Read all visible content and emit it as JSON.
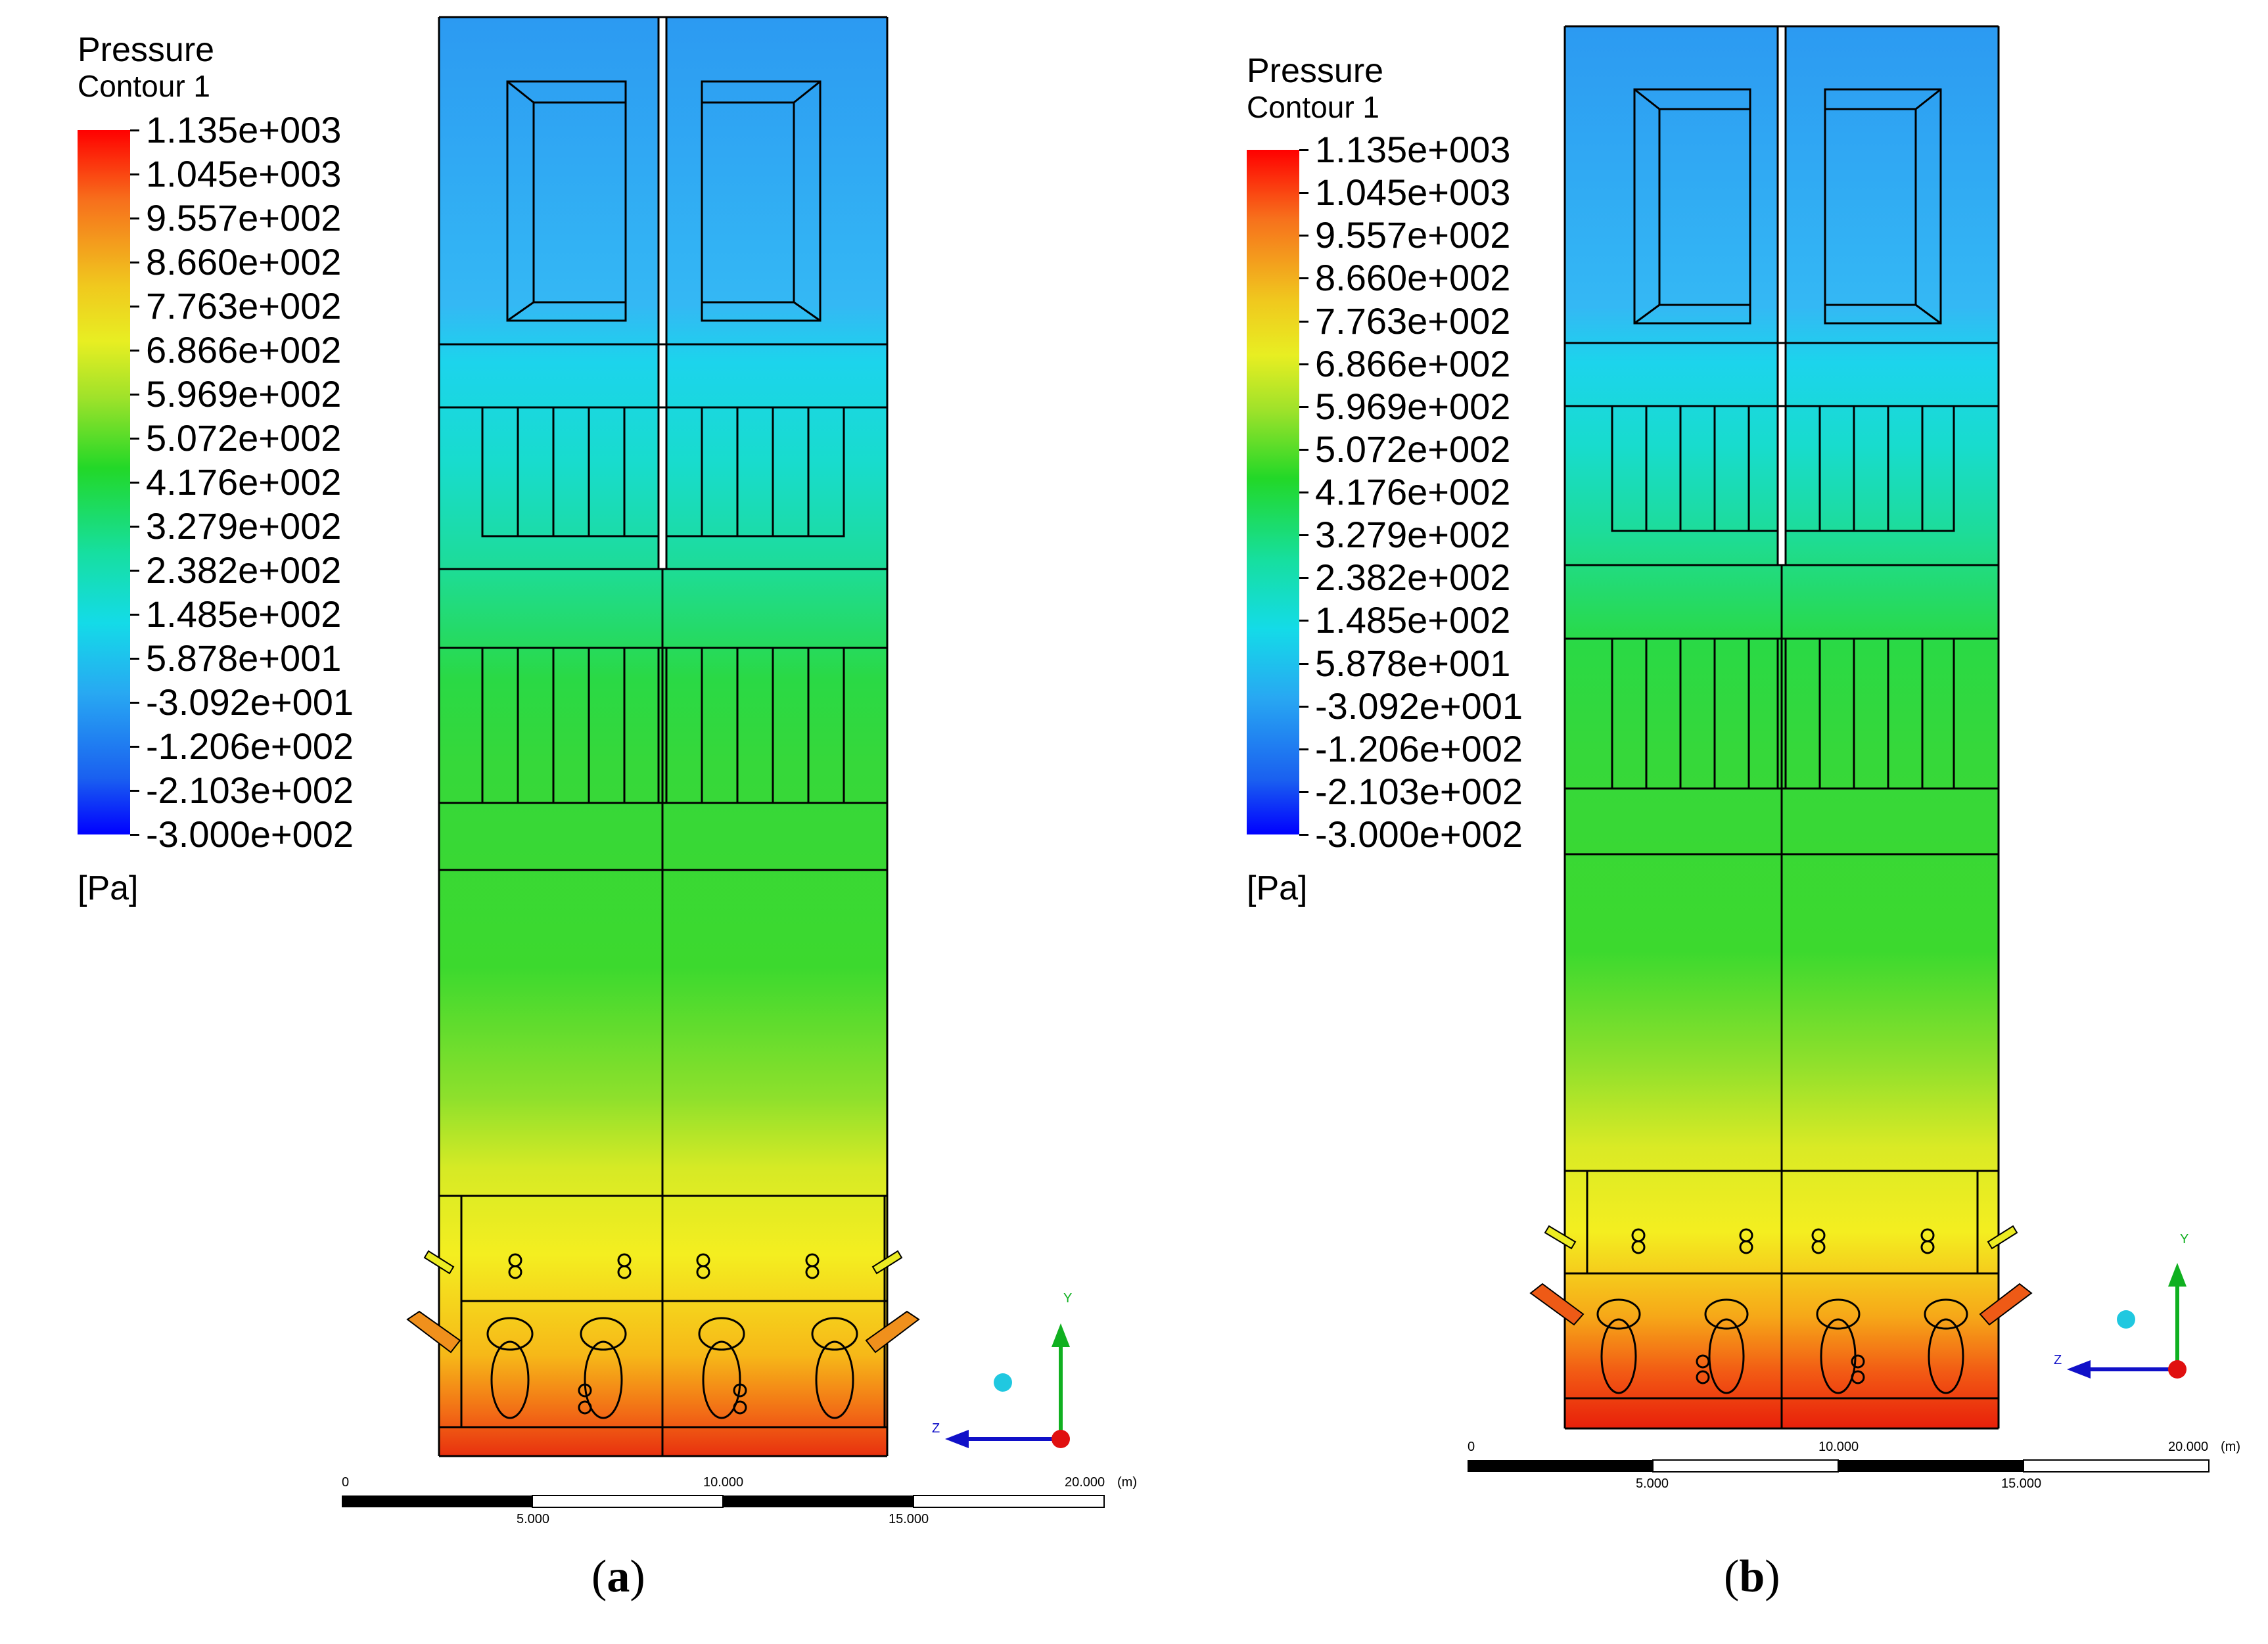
{
  "legend": {
    "title": "Pressure",
    "subtitle": "Contour 1",
    "values": [
      "1.135e+003",
      "1.045e+003",
      "9.557e+002",
      "8.660e+002",
      "7.763e+002",
      "6.866e+002",
      "5.969e+002",
      "5.072e+002",
      "4.176e+002",
      "3.279e+002",
      "2.382e+002",
      "1.485e+002",
      "5.878e+001",
      "-3.092e+001",
      "-1.206e+002",
      "-2.103e+002",
      "-3.000e+002"
    ],
    "unit": "[Pa]"
  },
  "scale_bar": {
    "top_labels": [
      "0",
      "10.000",
      "20.000"
    ],
    "bottom_labels": [
      "5.000",
      "15.000"
    ],
    "unit": "(m)"
  },
  "axes": {
    "y": "Y",
    "z": "Z"
  },
  "panels": [
    {
      "id": "a",
      "caption_open": "(",
      "caption_letter": "a",
      "caption_close": ")"
    },
    {
      "id": "b",
      "caption_open": "(",
      "caption_letter": "b",
      "caption_close": ")"
    }
  ],
  "colors": {
    "red": "#e8200a",
    "orange": "#f79018",
    "yellow": "#f0f022",
    "green": "#2fd92e",
    "cyan": "#14dbe6",
    "skyblue": "#32b4f2",
    "blue": "#2a96f0",
    "deepblue": "#1010e8"
  }
}
